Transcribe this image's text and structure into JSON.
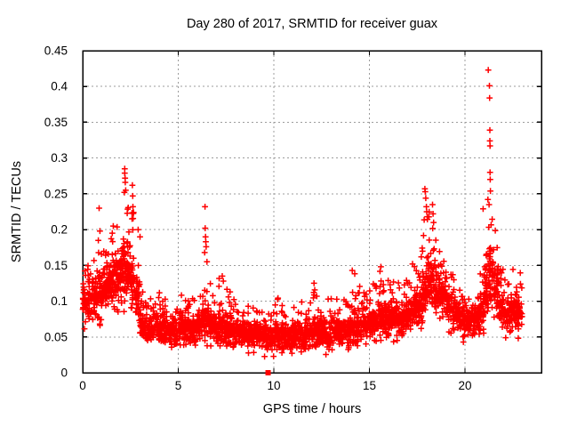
{
  "chart_data": {
    "type": "scatter",
    "title": "Day 280 of 2017, SRMTID for receiver guax",
    "xlabel": "GPS time / hours",
    "ylabel": "SRMTID / TECUs",
    "xlim": [
      0,
      24
    ],
    "ylim": [
      0,
      0.45
    ],
    "xticks": [
      0,
      5,
      10,
      15,
      20
    ],
    "xtick_labels": [
      "0",
      "5",
      "10",
      "15",
      "20"
    ],
    "yticks": [
      0,
      0.05,
      0.1,
      0.15,
      0.2,
      0.25,
      0.3,
      0.35,
      0.4,
      0.45
    ],
    "ytick_labels": [
      "0",
      "0.05",
      "0.1",
      "0.15",
      "0.2",
      "0.25",
      "0.3",
      "0.35",
      "0.4",
      "0.45"
    ],
    "grid": true,
    "legend": "none",
    "marker": "plus",
    "colors": {
      "points": "#ff0000",
      "grid": "#9c9c9c",
      "axis": "#000000",
      "background": "#ffffff",
      "text": "#000000"
    },
    "series_name": "SRMTID",
    "density_bins": {
      "description": "Dense scatter summarized per 0.25-hour bin as read from the plot",
      "bin_hours": 0.25,
      "columns": [
        "hour_start",
        "center",
        "min",
        "max",
        "count"
      ],
      "rows": [
        [
          0.0,
          0.1,
          0.05,
          0.145,
          36
        ],
        [
          0.25,
          0.1,
          0.055,
          0.15,
          36
        ],
        [
          0.5,
          0.105,
          0.06,
          0.165,
          36
        ],
        [
          0.75,
          0.11,
          0.055,
          0.195,
          38
        ],
        [
          1.0,
          0.115,
          0.06,
          0.175,
          38
        ],
        [
          1.25,
          0.125,
          0.07,
          0.19,
          38
        ],
        [
          1.5,
          0.135,
          0.07,
          0.205,
          40
        ],
        [
          1.75,
          0.14,
          0.08,
          0.215,
          40
        ],
        [
          2.0,
          0.15,
          0.08,
          0.245,
          42
        ],
        [
          2.25,
          0.148,
          0.08,
          0.24,
          42
        ],
        [
          2.5,
          0.128,
          0.068,
          0.23,
          40
        ],
        [
          2.75,
          0.103,
          0.05,
          0.18,
          36
        ],
        [
          3.0,
          0.07,
          0.04,
          0.12,
          34
        ],
        [
          3.25,
          0.06,
          0.035,
          0.1,
          34
        ],
        [
          3.5,
          0.06,
          0.03,
          0.11,
          34
        ],
        [
          3.75,
          0.062,
          0.032,
          0.125,
          34
        ],
        [
          4.0,
          0.065,
          0.035,
          0.12,
          34
        ],
        [
          4.25,
          0.062,
          0.033,
          0.11,
          34
        ],
        [
          4.5,
          0.06,
          0.03,
          0.1,
          34
        ],
        [
          4.75,
          0.058,
          0.03,
          0.1,
          34
        ],
        [
          5.0,
          0.065,
          0.038,
          0.11,
          34
        ],
        [
          5.25,
          0.062,
          0.035,
          0.105,
          34
        ],
        [
          5.5,
          0.06,
          0.03,
          0.105,
          34
        ],
        [
          5.75,
          0.06,
          0.032,
          0.11,
          34
        ],
        [
          6.0,
          0.068,
          0.04,
          0.12,
          34
        ],
        [
          6.25,
          0.075,
          0.04,
          0.16,
          36
        ],
        [
          6.5,
          0.07,
          0.035,
          0.13,
          34
        ],
        [
          6.75,
          0.065,
          0.035,
          0.115,
          34
        ],
        [
          7.0,
          0.065,
          0.03,
          0.135,
          34
        ],
        [
          7.25,
          0.062,
          0.03,
          0.13,
          34
        ],
        [
          7.5,
          0.06,
          0.03,
          0.12,
          34
        ],
        [
          7.75,
          0.058,
          0.028,
          0.105,
          34
        ],
        [
          8.0,
          0.058,
          0.03,
          0.1,
          34
        ],
        [
          8.25,
          0.056,
          0.028,
          0.095,
          34
        ],
        [
          8.5,
          0.055,
          0.025,
          0.095,
          34
        ],
        [
          8.75,
          0.055,
          0.028,
          0.095,
          34
        ],
        [
          9.0,
          0.055,
          0.03,
          0.095,
          34
        ],
        [
          9.25,
          0.052,
          0.028,
          0.09,
          34
        ],
        [
          9.5,
          0.05,
          0.02,
          0.09,
          34
        ],
        [
          9.75,
          0.05,
          0.022,
          0.09,
          34
        ],
        [
          10.0,
          0.055,
          0.025,
          0.105,
          34
        ],
        [
          10.25,
          0.052,
          0.025,
          0.095,
          34
        ],
        [
          10.5,
          0.05,
          0.02,
          0.09,
          34
        ],
        [
          10.75,
          0.052,
          0.025,
          0.095,
          34
        ],
        [
          11.0,
          0.055,
          0.03,
          0.115,
          34
        ],
        [
          11.25,
          0.055,
          0.028,
          0.105,
          34
        ],
        [
          11.5,
          0.053,
          0.025,
          0.1,
          34
        ],
        [
          11.75,
          0.055,
          0.025,
          0.1,
          34
        ],
        [
          12.0,
          0.058,
          0.03,
          0.12,
          34
        ],
        [
          12.25,
          0.058,
          0.03,
          0.11,
          34
        ],
        [
          12.5,
          0.055,
          0.025,
          0.1,
          34
        ],
        [
          12.75,
          0.055,
          0.028,
          0.105,
          34
        ],
        [
          13.0,
          0.058,
          0.03,
          0.115,
          34
        ],
        [
          13.25,
          0.058,
          0.03,
          0.11,
          34
        ],
        [
          13.5,
          0.058,
          0.03,
          0.105,
          34
        ],
        [
          13.75,
          0.06,
          0.03,
          0.11,
          34
        ],
        [
          14.0,
          0.065,
          0.035,
          0.14,
          34
        ],
        [
          14.25,
          0.065,
          0.035,
          0.13,
          34
        ],
        [
          14.5,
          0.065,
          0.03,
          0.115,
          34
        ],
        [
          14.75,
          0.065,
          0.035,
          0.115,
          34
        ],
        [
          15.0,
          0.07,
          0.04,
          0.125,
          34
        ],
        [
          15.25,
          0.07,
          0.04,
          0.13,
          34
        ],
        [
          15.5,
          0.075,
          0.04,
          0.145,
          36
        ],
        [
          15.75,
          0.075,
          0.04,
          0.14,
          36
        ],
        [
          16.0,
          0.08,
          0.045,
          0.145,
          36
        ],
        [
          16.25,
          0.078,
          0.042,
          0.135,
          36
        ],
        [
          16.5,
          0.075,
          0.04,
          0.13,
          36
        ],
        [
          16.75,
          0.078,
          0.042,
          0.13,
          36
        ],
        [
          17.0,
          0.085,
          0.048,
          0.155,
          36
        ],
        [
          17.25,
          0.088,
          0.05,
          0.16,
          36
        ],
        [
          17.5,
          0.095,
          0.055,
          0.185,
          38
        ],
        [
          17.75,
          0.11,
          0.06,
          0.22,
          40
        ],
        [
          18.0,
          0.13,
          0.075,
          0.23,
          42
        ],
        [
          18.25,
          0.125,
          0.07,
          0.21,
          40
        ],
        [
          18.5,
          0.115,
          0.065,
          0.18,
          38
        ],
        [
          18.75,
          0.105,
          0.06,
          0.165,
          36
        ],
        [
          19.0,
          0.095,
          0.055,
          0.15,
          36
        ],
        [
          19.25,
          0.088,
          0.05,
          0.14,
          36
        ],
        [
          19.5,
          0.08,
          0.045,
          0.125,
          34
        ],
        [
          19.75,
          0.072,
          0.04,
          0.115,
          34
        ],
        [
          20.0,
          0.07,
          0.04,
          0.11,
          34
        ],
        [
          20.25,
          0.068,
          0.038,
          0.11,
          34
        ],
        [
          20.5,
          0.075,
          0.045,
          0.13,
          34
        ],
        [
          20.75,
          0.09,
          0.05,
          0.175,
          36
        ],
        [
          21.0,
          0.12,
          0.07,
          0.215,
          40
        ],
        [
          21.25,
          0.14,
          0.08,
          0.23,
          40
        ],
        [
          21.5,
          0.12,
          0.065,
          0.2,
          38
        ],
        [
          21.75,
          0.095,
          0.055,
          0.15,
          34
        ],
        [
          22.0,
          0.08,
          0.045,
          0.13,
          34
        ],
        [
          22.25,
          0.085,
          0.05,
          0.135,
          34
        ],
        [
          22.5,
          0.09,
          0.05,
          0.145,
          34
        ],
        [
          22.75,
          0.085,
          0.048,
          0.14,
          32
        ]
      ]
    },
    "outlier_points": [
      [
        0.82,
        0.185
      ],
      [
        0.86,
        0.23
      ],
      [
        0.9,
        0.198
      ],
      [
        1.55,
        0.195
      ],
      [
        1.6,
        0.205
      ],
      [
        2.18,
        0.252
      ],
      [
        2.2,
        0.285
      ],
      [
        2.2,
        0.279
      ],
      [
        2.22,
        0.272
      ],
      [
        2.23,
        0.266
      ],
      [
        2.25,
        0.255
      ],
      [
        2.58,
        0.215
      ],
      [
        2.6,
        0.262
      ],
      [
        2.62,
        0.247
      ],
      [
        2.63,
        0.232
      ],
      [
        2.66,
        0.224
      ],
      [
        2.9,
        0.2
      ],
      [
        3.0,
        0.19
      ],
      [
        6.38,
        0.168
      ],
      [
        6.4,
        0.232
      ],
      [
        6.41,
        0.202
      ],
      [
        6.43,
        0.19
      ],
      [
        6.44,
        0.183
      ],
      [
        6.46,
        0.176
      ],
      [
        6.5,
        0.155
      ],
      [
        7.3,
        0.135
      ],
      [
        7.36,
        0.128
      ],
      [
        12.1,
        0.125
      ],
      [
        14.1,
        0.143
      ],
      [
        15.6,
        0.148
      ],
      [
        17.9,
        0.257
      ],
      [
        17.92,
        0.253
      ],
      [
        17.95,
        0.244
      ],
      [
        17.98,
        0.232
      ],
      [
        18.0,
        0.225
      ],
      [
        18.03,
        0.218
      ],
      [
        18.3,
        0.235
      ],
      [
        18.33,
        0.222
      ],
      [
        18.36,
        0.21
      ],
      [
        20.95,
        0.229
      ],
      [
        21.2,
        0.242
      ],
      [
        21.22,
        0.423
      ],
      [
        21.26,
        0.235
      ],
      [
        21.28,
        0.401
      ],
      [
        21.29,
        0.384
      ],
      [
        21.3,
        0.339
      ],
      [
        21.3,
        0.324
      ],
      [
        21.31,
        0.317
      ],
      [
        21.31,
        0.28
      ],
      [
        21.32,
        0.27
      ],
      [
        21.33,
        0.254
      ]
    ],
    "zero_point": {
      "x": 9.7,
      "y": 0,
      "marker": "filled-square"
    }
  }
}
